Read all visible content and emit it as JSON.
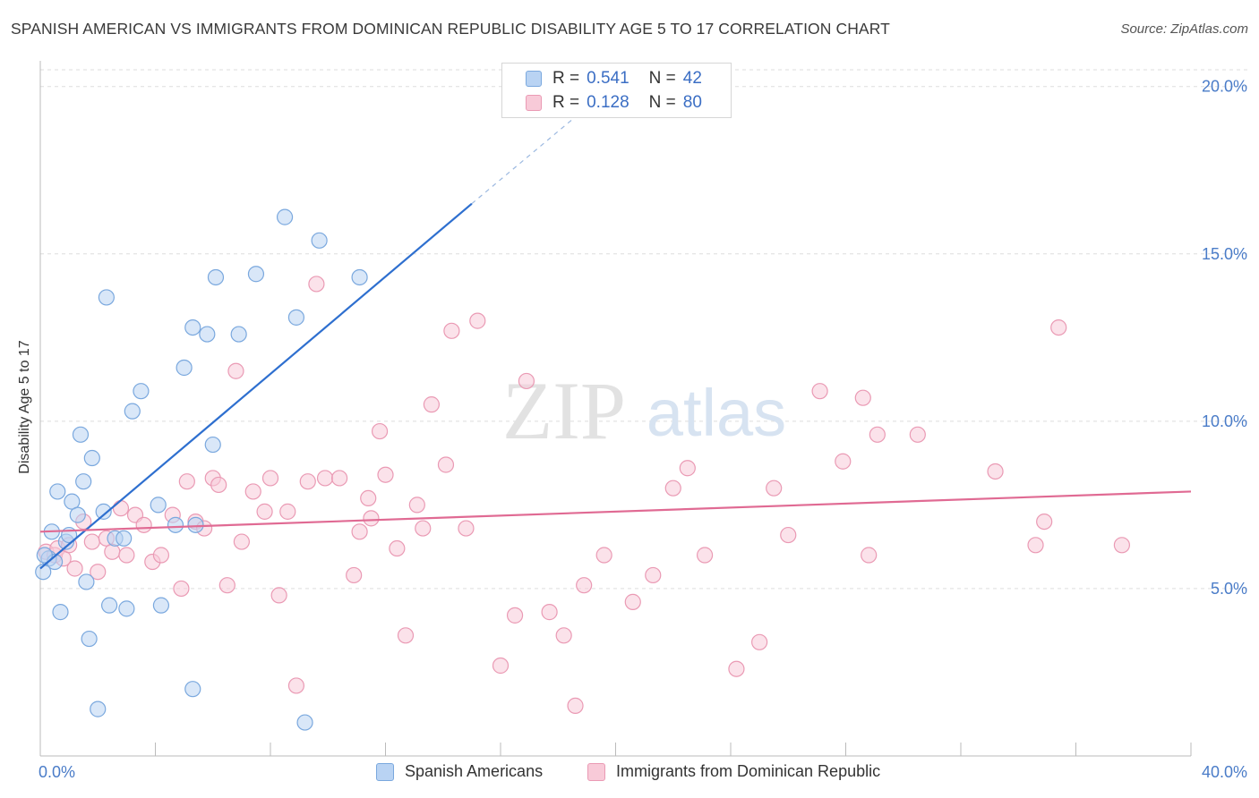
{
  "title": "SPANISH AMERICAN VS IMMIGRANTS FROM DOMINICAN REPUBLIC DISABILITY AGE 5 TO 17 CORRELATION CHART",
  "source": "Source: ZipAtlas.com",
  "watermark": {
    "zip": "ZIP",
    "atlas": "atlas"
  },
  "legend_top": {
    "rows": [
      {
        "r_label": "R =",
        "r_value": "0.541",
        "n_label": "N =",
        "n_value": "42"
      },
      {
        "r_label": "R =",
        "r_value": "0.128",
        "n_label": "N =",
        "n_value": "80"
      }
    ]
  },
  "legend_bottom": [
    "Spanish Americans",
    "Immigrants from Dominican Republic"
  ],
  "colors": {
    "blue_fill": "#b9d3f3",
    "blue_stroke": "#7aa8de",
    "blue_line": "#2e6fcf",
    "pink_fill": "#f8cad8",
    "pink_stroke": "#ea9ab4",
    "pink_line": "#e06a93",
    "tick_label": "#4a7cc8",
    "grid": "#dddddd"
  },
  "chart_data": {
    "type": "scatter",
    "title": "SPANISH AMERICAN VS IMMIGRANTS FROM DOMINICAN REPUBLIC DISABILITY AGE 5 TO 17 CORRELATION CHART",
    "xlabel": "",
    "ylabel": "Disability Age 5 to 17",
    "xlim": [
      0,
      40
    ],
    "ylim": [
      0,
      20.5
    ],
    "x_tick_labels": [
      "0.0%",
      "40.0%"
    ],
    "y_ticks": [
      5,
      10,
      15,
      20
    ],
    "y_tick_labels": [
      "5.0%",
      "10.0%",
      "15.0%",
      "20.0%"
    ],
    "grid": true,
    "legend_placement": "top-center",
    "series": [
      {
        "name": "Spanish Americans",
        "r": 0.541,
        "n": 42,
        "trend": {
          "x0": 0,
          "y0": 5.6,
          "x1": 15.0,
          "y1": 16.5,
          "dash_to_x": 20.0,
          "dash_to_y": 20.1
        },
        "points": [
          [
            0.1,
            5.5
          ],
          [
            0.3,
            5.9
          ],
          [
            0.4,
            6.7
          ],
          [
            0.5,
            5.8
          ],
          [
            0.6,
            7.9
          ],
          [
            0.7,
            4.3
          ],
          [
            0.9,
            6.4
          ],
          [
            1.0,
            6.6
          ],
          [
            1.1,
            7.6
          ],
          [
            1.3,
            7.2
          ],
          [
            1.4,
            9.6
          ],
          [
            1.5,
            8.2
          ],
          [
            1.6,
            5.2
          ],
          [
            1.7,
            3.5
          ],
          [
            1.8,
            8.9
          ],
          [
            2.0,
            1.4
          ],
          [
            2.2,
            7.3
          ],
          [
            2.3,
            13.7
          ],
          [
            2.4,
            4.5
          ],
          [
            2.6,
            6.5
          ],
          [
            2.9,
            6.5
          ],
          [
            3.0,
            4.4
          ],
          [
            3.2,
            10.3
          ],
          [
            3.5,
            10.9
          ],
          [
            4.1,
            7.5
          ],
          [
            4.2,
            4.5
          ],
          [
            4.7,
            6.9
          ],
          [
            5.0,
            11.6
          ],
          [
            5.3,
            12.8
          ],
          [
            5.3,
            2.0
          ],
          [
            5.4,
            6.9
          ],
          [
            5.8,
            12.6
          ],
          [
            6.0,
            9.3
          ],
          [
            6.1,
            14.3
          ],
          [
            6.9,
            12.6
          ],
          [
            7.5,
            14.4
          ],
          [
            8.5,
            16.1
          ],
          [
            8.9,
            13.1
          ],
          [
            9.2,
            1.0
          ],
          [
            9.7,
            15.4
          ],
          [
            11.1,
            14.3
          ],
          [
            0.15,
            6.0
          ]
        ]
      },
      {
        "name": "Immigrants from Dominican Republic",
        "r": 0.128,
        "n": 80,
        "trend": {
          "x0": 0,
          "y0": 6.7,
          "x1": 40,
          "y1": 7.9
        },
        "points": [
          [
            0.2,
            6.1
          ],
          [
            0.5,
            6.0
          ],
          [
            0.6,
            6.2
          ],
          [
            0.8,
            5.9
          ],
          [
            1.0,
            6.3
          ],
          [
            1.2,
            5.6
          ],
          [
            1.5,
            7.0
          ],
          [
            1.8,
            6.4
          ],
          [
            2.0,
            5.5
          ],
          [
            2.3,
            6.5
          ],
          [
            2.5,
            6.1
          ],
          [
            2.8,
            7.4
          ],
          [
            3.0,
            6.0
          ],
          [
            3.3,
            7.2
          ],
          [
            3.6,
            6.9
          ],
          [
            3.9,
            5.8
          ],
          [
            4.2,
            6.0
          ],
          [
            4.6,
            7.2
          ],
          [
            4.9,
            5.0
          ],
          [
            5.1,
            8.2
          ],
          [
            5.4,
            7.0
          ],
          [
            5.7,
            6.8
          ],
          [
            6.0,
            8.3
          ],
          [
            6.2,
            8.1
          ],
          [
            6.5,
            5.1
          ],
          [
            6.8,
            11.5
          ],
          [
            7.0,
            6.4
          ],
          [
            7.4,
            7.9
          ],
          [
            7.8,
            7.3
          ],
          [
            8.0,
            8.3
          ],
          [
            8.3,
            4.8
          ],
          [
            8.6,
            7.3
          ],
          [
            8.9,
            2.1
          ],
          [
            9.3,
            8.2
          ],
          [
            9.6,
            14.1
          ],
          [
            9.9,
            8.3
          ],
          [
            10.4,
            8.3
          ],
          [
            10.9,
            5.4
          ],
          [
            11.1,
            6.7
          ],
          [
            11.4,
            7.7
          ],
          [
            11.5,
            7.1
          ],
          [
            11.8,
            9.7
          ],
          [
            12.0,
            8.4
          ],
          [
            12.4,
            6.2
          ],
          [
            12.7,
            3.6
          ],
          [
            13.1,
            7.5
          ],
          [
            13.3,
            6.8
          ],
          [
            13.6,
            10.5
          ],
          [
            14.1,
            8.7
          ],
          [
            14.3,
            12.7
          ],
          [
            14.8,
            6.8
          ],
          [
            15.2,
            13.0
          ],
          [
            16.0,
            2.7
          ],
          [
            16.5,
            4.2
          ],
          [
            16.9,
            11.2
          ],
          [
            17.7,
            4.3
          ],
          [
            18.2,
            3.6
          ],
          [
            18.6,
            1.5
          ],
          [
            18.9,
            5.1
          ],
          [
            19.6,
            6.0
          ],
          [
            20.6,
            4.6
          ],
          [
            21.3,
            5.4
          ],
          [
            22.0,
            8.0
          ],
          [
            22.5,
            8.6
          ],
          [
            23.1,
            6.0
          ],
          [
            24.2,
            2.6
          ],
          [
            25.0,
            3.4
          ],
          [
            25.5,
            8.0
          ],
          [
            26.0,
            6.6
          ],
          [
            27.1,
            10.9
          ],
          [
            27.9,
            8.8
          ],
          [
            28.6,
            10.7
          ],
          [
            28.8,
            6.0
          ],
          [
            29.1,
            9.6
          ],
          [
            30.5,
            9.6
          ],
          [
            33.2,
            8.5
          ],
          [
            34.6,
            6.3
          ],
          [
            34.9,
            7.0
          ],
          [
            35.4,
            12.8
          ],
          [
            37.6,
            6.3
          ]
        ]
      }
    ]
  }
}
